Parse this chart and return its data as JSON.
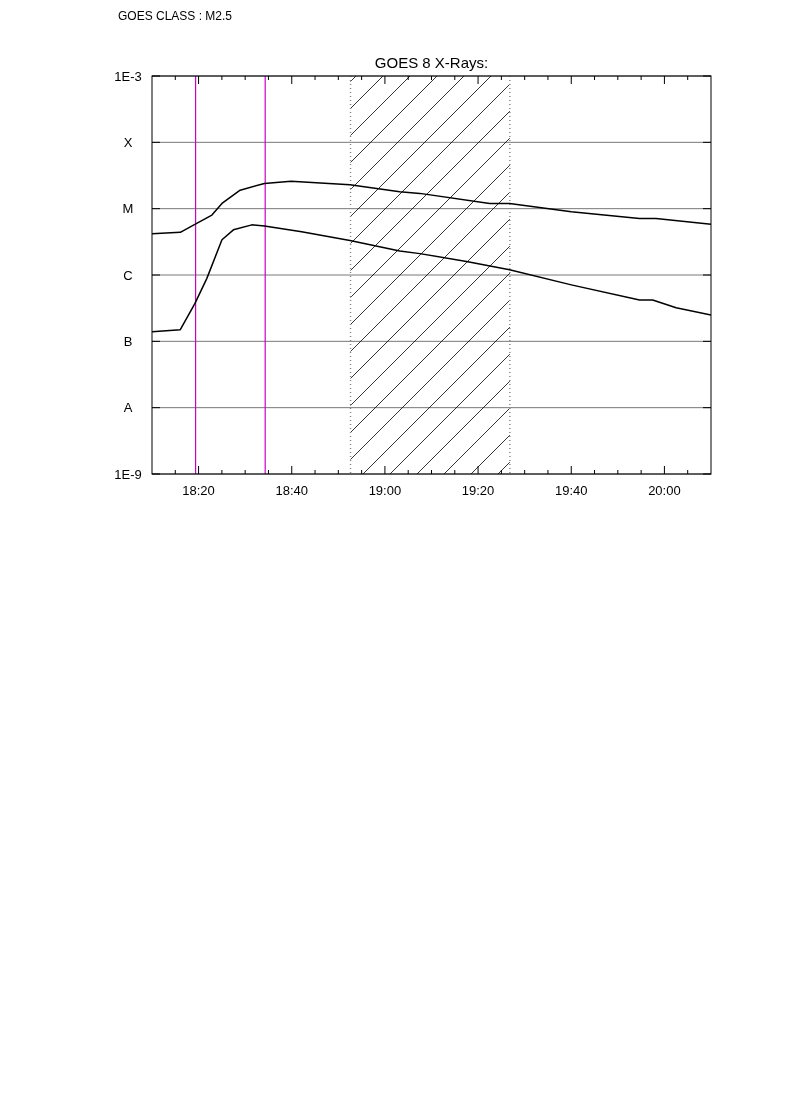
{
  "chart_data": {
    "type": "line",
    "title": "GOES 8 X-Rays:",
    "annotations": [
      "GOES CLASS : M2.5"
    ],
    "log": "y",
    "grid": "y",
    "xlim": [
      18.1667,
      20.1667
    ],
    "xticks": [
      {
        "value": 18.25,
        "label": null
      },
      {
        "value": 18.3333,
        "label": "18:20"
      },
      {
        "value": 18.4167,
        "label": null
      },
      {
        "value": 18.5,
        "label": null
      },
      {
        "value": 18.5833,
        "label": null
      },
      {
        "value": 18.6667,
        "label": "18:40"
      },
      {
        "value": 18.75,
        "label": null
      },
      {
        "value": 18.8333,
        "label": null
      },
      {
        "value": 18.9167,
        "label": null
      },
      {
        "value": 19,
        "label": "19:00"
      },
      {
        "value": 19.0833,
        "label": null
      },
      {
        "value": 19.1667,
        "label": null
      },
      {
        "value": 19.25,
        "label": null
      },
      {
        "value": 19.3333,
        "label": "19:20"
      },
      {
        "value": 19.4167,
        "label": null
      },
      {
        "value": 19.5,
        "label": null
      },
      {
        "value": 19.5833,
        "label": null
      },
      {
        "value": 19.6667,
        "label": "19:40"
      },
      {
        "value": 19.75,
        "label": null
      },
      {
        "value": 19.8333,
        "label": null
      },
      {
        "value": 19.9167,
        "label": null
      },
      {
        "value": 20,
        "label": "20:00"
      },
      {
        "value": 20.0833,
        "label": null
      }
    ],
    "ylim": [
      1e-09,
      0.001
    ],
    "yticks": [
      {
        "value": 1e-09,
        "label": "1E-9"
      },
      {
        "value": 1e-08,
        "label": "A"
      },
      {
        "value": 1e-07,
        "label": "B"
      },
      {
        "value": 1e-06,
        "label": "C"
      },
      {
        "value": 1e-05,
        "label": "M"
      },
      {
        "value": 0.0001,
        "label": "X"
      },
      {
        "value": 0.001,
        "label": "1E-3"
      }
    ],
    "ref_lines": [
      {
        "axis": "x",
        "value": 18.3227,
        "color": "#cc00cc"
      },
      {
        "axis": "x",
        "value": 18.5717,
        "color": "#cc00cc"
      },
      {
        "axis": "x",
        "value": 18.877,
        "color": "#888888",
        "line_style": "dotted"
      },
      {
        "axis": "x",
        "value": 19.447,
        "color": "#888888",
        "line_style": "dotted"
      }
    ],
    "bands": [
      {
        "axis": "x",
        "from": 18.877,
        "to": 19.447,
        "color": "#000000"
      }
    ],
    "series": [
      {
        "color": "#000000",
        "x": [
          18.167,
          18.268,
          18.32,
          18.381,
          18.417,
          18.482,
          18.569,
          18.664,
          18.875,
          19.053,
          19.125,
          19.375,
          19.446,
          19.667,
          19.911,
          19.97,
          20.1667
        ],
        "values": [
          4.2e-06,
          4.4e-06,
          5.8e-06,
          8e-06,
          1.2e-05,
          1.9e-05,
          2.4e-05,
          2.6e-05,
          2.3e-05,
          1.8e-05,
          1.7e-05,
          1.2e-05,
          1.2e-05,
          9e-06,
          7.1e-06,
          7.1e-06,
          5.8e-06
        ]
      },
      {
        "color": "#000000",
        "x": [
          18.167,
          18.268,
          18.32,
          18.363,
          18.417,
          18.458,
          18.524,
          18.569,
          18.702,
          18.875,
          19.053,
          19.125,
          19.292,
          19.446,
          19.667,
          19.911,
          19.958,
          20.042,
          20.1667
        ],
        "values": [
          1.4e-07,
          1.5e-07,
          3.7e-07,
          8.9e-07,
          3.4e-06,
          4.8e-06,
          5.7e-06,
          5.5e-06,
          4.5e-06,
          3.3e-06,
          2.3e-06,
          2.1e-06,
          1.6e-06,
          1.2e-06,
          7.1e-07,
          4.2e-07,
          4.2e-07,
          3.2e-07,
          2.5e-07
        ]
      }
    ]
  }
}
